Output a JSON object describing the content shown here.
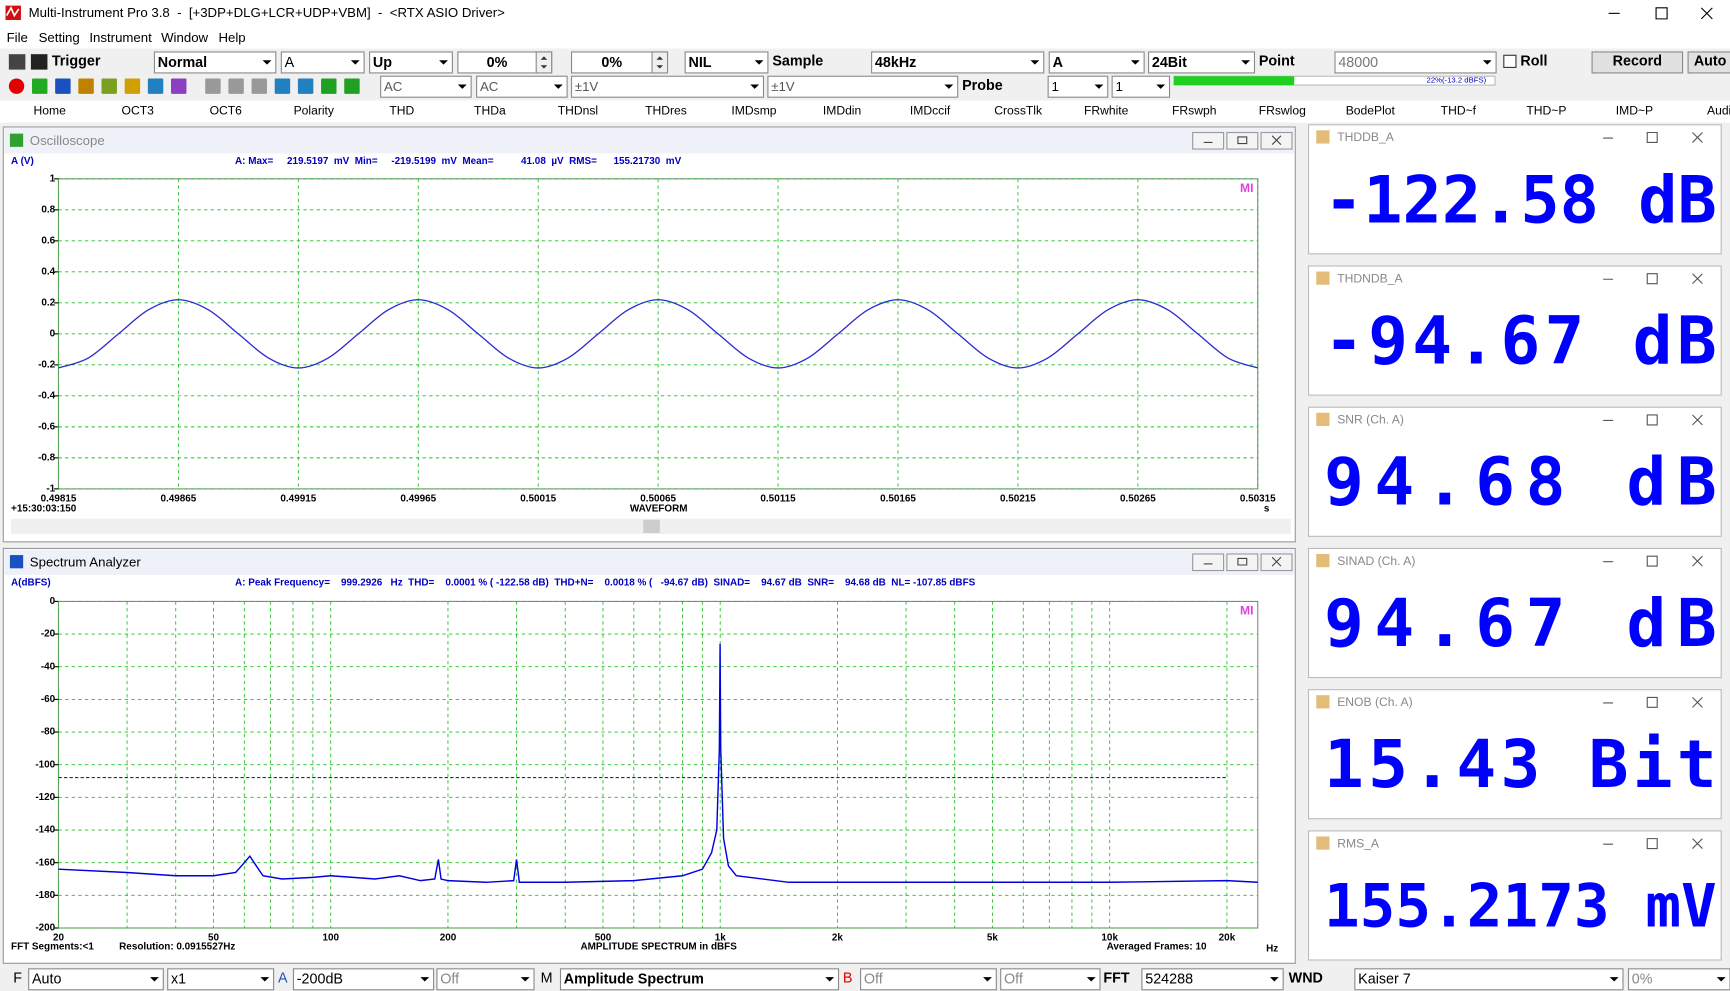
{
  "title_bar": {
    "title": "Multi-Instrument Pro 3.8  -  [+3DP+DLG+LCR+UDP+VBM]  -  <RTX ASIO Driver>"
  },
  "menu": [
    "File",
    "Setting",
    "Instrument",
    "Window",
    "Help"
  ],
  "toolbar1": [
    "Trigger",
    "Normal",
    "A",
    "Up",
    "0%",
    "0%",
    "NIL",
    "Sample",
    "48kHz",
    "A",
    "24Bit",
    "Point",
    "48000",
    "Roll",
    "Record",
    "Auto"
  ],
  "toolbar2": [
    "AC",
    "AC",
    "±1V",
    "±1V",
    "Probe",
    "1",
    "1",
    "22%(-13.2 dBFS)"
  ],
  "tabs": [
    "Home",
    "OCT3",
    "OCT6",
    "Polarity",
    "THD",
    "THDa",
    "THDnsl",
    "THDres",
    "IMDsmp",
    "IMDdin",
    "IMDccif",
    "CrossTlk",
    "FRwhite",
    "FRswph",
    "FRswlog",
    "BodePlot",
    "THD~f",
    "THD~P",
    "IMD~P",
    "Audio"
  ],
  "oscilloscope": {
    "title": "Oscilloscope",
    "y_label": "A (V)",
    "readout": "A: Max=     219.5197  mV  Min=     -219.5199  mV  Mean=          41.08  µV  RMS=      155.21730  mV",
    "logo": "MI",
    "timestamp": "+15:30:03:150",
    "x_label": "WAVEFORM",
    "x_unit": "s",
    "xlim": [
      0.49815,
      0.50315
    ],
    "xticks": [
      0.49815,
      0.49865,
      0.49915,
      0.49965,
      0.50015,
      0.50065,
      0.50115,
      0.50165,
      0.50215,
      0.50265,
      0.50315
    ],
    "ylim": [
      -1,
      1
    ],
    "yticks": [
      1,
      0.8,
      0.6,
      0.4,
      0.2,
      0,
      -0.2,
      -0.4,
      -0.6,
      -0.8,
      -1
    ],
    "x": [
      0.49815,
      0.498275,
      0.4984,
      0.498525,
      0.49865,
      0.498775,
      0.4989,
      0.499025,
      0.49915,
      0.499275,
      0.4994,
      0.499525,
      0.49965,
      0.499775,
      0.4999,
      0.500025,
      0.50015,
      0.500275,
      0.5004,
      0.500525,
      0.50065,
      0.500775,
      0.5009,
      0.501025,
      0.50115,
      0.501275,
      0.5014,
      0.501525,
      0.50165,
      0.501775,
      0.5019,
      0.502025,
      0.50215,
      0.502275,
      0.5024,
      0.502525,
      0.50265,
      0.502775,
      0.5029,
      0.503025,
      0.50315
    ],
    "values": [
      -0.22,
      -0.155,
      0,
      0.155,
      0.22,
      0.155,
      0,
      -0.155,
      -0.22,
      -0.155,
      0,
      0.155,
      0.22,
      0.155,
      0,
      -0.155,
      -0.22,
      -0.155,
      0,
      0.155,
      0.22,
      0.155,
      0,
      -0.155,
      -0.22,
      -0.155,
      0,
      0.155,
      0.22,
      0.155,
      0,
      -0.155,
      -0.22,
      -0.155,
      0,
      0.155,
      0.22,
      0.155,
      0,
      -0.155,
      -0.22
    ],
    "color": "#2b2bd0"
  },
  "spectrum": {
    "title": "Spectrum Analyzer",
    "y_label": "A(dBFS)",
    "readout": "A: Peak Frequency=    999.2926   Hz  THD=    0.0001 % ( -122.58 dB)  THD+N=    0.0018 % (   -94.67 dB)  SINAD=    94.67 dB  SNR=    94.68 dB  NL= -107.85 dBFS",
    "logo": "MI",
    "footer_left": "FFT Segments:<1",
    "resolution": "Resolution: 0.0915527Hz",
    "x_label": "AMPLITUDE SPECTRUM in dBFS",
    "frames": "Averaged Frames: 10",
    "x_unit": "Hz",
    "x_scale": "log",
    "xlim": [
      20,
      24000
    ],
    "xticks": [
      20,
      50,
      100,
      200,
      500,
      {
        "value": 1000,
        "label": "1k"
      },
      {
        "value": 2000,
        "label": "2k"
      },
      {
        "value": 5000,
        "label": "5k"
      },
      {
        "value": 10000,
        "label": "10k"
      },
      {
        "value": 20000,
        "label": "20k"
      }
    ],
    "xminor": [
      30,
      40,
      60,
      70,
      80,
      90,
      300,
      400,
      600,
      700,
      800,
      900,
      3000,
      4000,
      6000,
      7000,
      8000,
      9000
    ],
    "ylim": [
      -200,
      0
    ],
    "yticks": [
      0,
      -20,
      -40,
      -60,
      -80,
      -100,
      -120,
      -140,
      -160,
      -180,
      -200
    ],
    "noise_level": -107.85,
    "x": [
      20,
      30,
      40,
      50,
      57,
      60,
      62,
      64,
      67,
      75,
      90,
      100,
      130,
      150,
      170,
      185,
      189,
      192,
      200,
      250,
      295,
      300,
      305,
      400,
      600,
      800,
      900,
      950,
      980,
      995,
      999.3,
      1003,
      1020,
      1050,
      1100,
      1500,
      2000,
      5000,
      10000,
      20000,
      24000
    ],
    "values": [
      -164,
      -166,
      -168,
      -168,
      -166,
      -160,
      -156,
      -161,
      -168,
      -170,
      -169,
      -168,
      -170,
      -168,
      -171,
      -170,
      -158,
      -170,
      -171,
      -172,
      -171,
      -158,
      -172,
      -172,
      -171,
      -168,
      -164,
      -154,
      -140,
      -90,
      -26,
      -90,
      -145,
      -162,
      -168,
      -172,
      -172,
      -172,
      -172,
      -171,
      -172
    ],
    "color": "#0000e0"
  },
  "displays": [
    {
      "label": "THDDB_A",
      "value": "-122.58 dB"
    },
    {
      "label": "THDNDB_A",
      "value": "-94.67 dB"
    },
    {
      "label": "SNR (Ch. A)",
      "value": "94.68 dB"
    },
    {
      "label": "SINAD (Ch. A)",
      "value": "94.67 dB"
    },
    {
      "label": "ENOB (Ch. A)",
      "value": "15.43 Bit"
    },
    {
      "label": "RMS_A",
      "value": "155.2173 mV"
    }
  ],
  "bottom_bar": [
    "F",
    "Auto",
    "x1",
    "A",
    "-200dB",
    "Off",
    "M",
    "Amplitude Spectrum",
    "B",
    "Off",
    "Off",
    "FFT",
    "524288",
    "WND",
    "Kaiser 7",
    "0%"
  ]
}
